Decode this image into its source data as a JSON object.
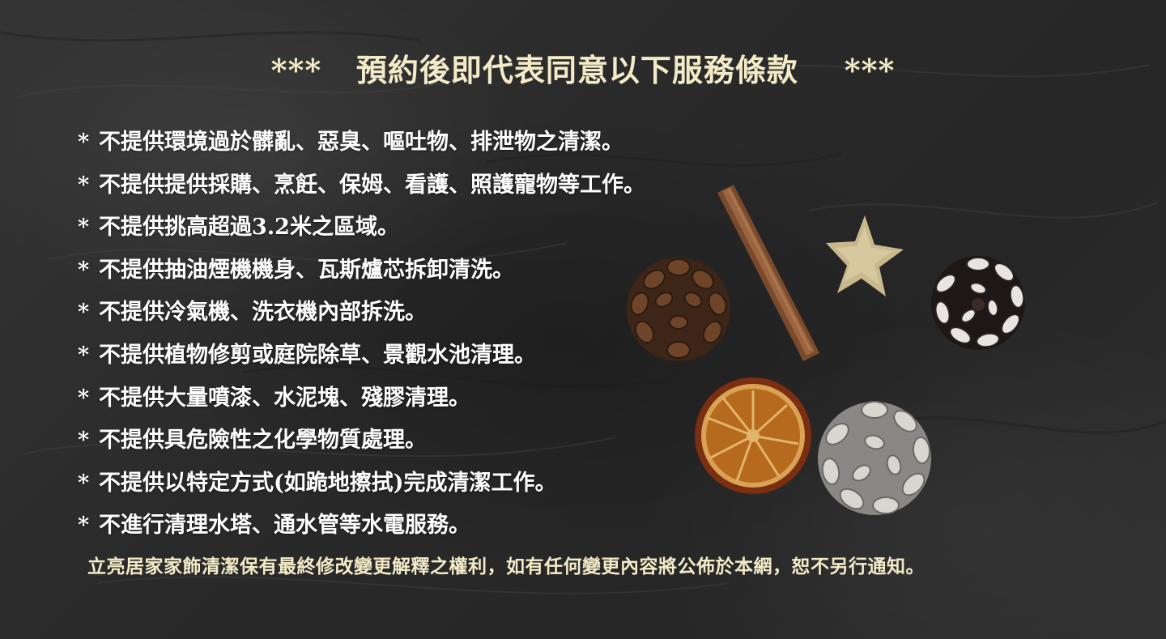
{
  "header": {
    "title": "***   預約後即代表同意以下服務條款    ***"
  },
  "terms": {
    "bullet": "*",
    "items": [
      "不提供環境過於髒亂、惡臭、嘔吐物、排泄物之清潔。",
      "不提供提供採購、烹飪、保姆、看護、照護寵物等工作。",
      "不提供挑高超過3.2米之區域。",
      "不提供抽油煙機機身、瓦斯爐芯拆卸清洗。",
      "不提供冷氣機、洗衣機內部拆洗。",
      "不提供植物修剪或庭院除草、景觀水池清理。",
      "不提供大量噴漆、水泥塊、殘膠清理。",
      "不提供具危險性之化學物質處理。",
      "不提供以特定方式(如跪地擦拭)完成清潔工作。",
      "不進行清理水塔、通水管等水電服務。"
    ]
  },
  "footer": {
    "notice": "立亮居家家飾清潔保有最終修改變更解釋之權利，如有任何變更內容將公佈於本網，恕不另行通知。"
  },
  "colors": {
    "title_text": "#f3ebc8",
    "body_text": "#ffffff",
    "background": "#2b2b2b"
  },
  "decorations": [
    "cinnamon-stick-image",
    "star-ornament-image",
    "brown-pinecone-image",
    "white-tipped-pinecone-image",
    "dried-orange-slice-image",
    "frosted-pinecone-image"
  ]
}
